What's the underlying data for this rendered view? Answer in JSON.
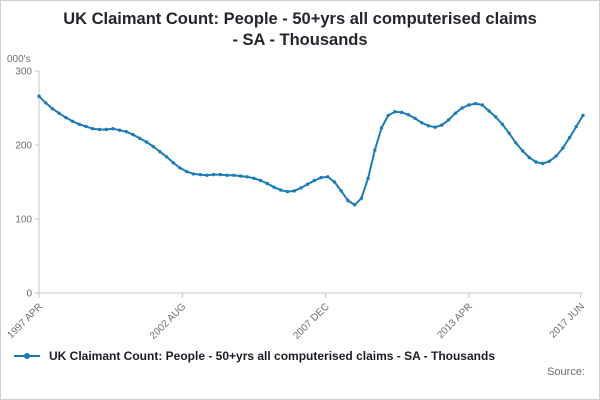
{
  "title": {
    "lines": [
      "UK Claimant Count: People - 50+yrs all computerised claims",
      "- SA - Thousands"
    ]
  },
  "colors": {
    "line": "#1d7cb8",
    "axis": "#c4c4c4",
    "tick_label": "#6e6e6e",
    "title_text": "#24262e"
  },
  "legend": {
    "label": "UK Claimant Count: People - 50+yrs all computerised claims - SA - Thousands"
  },
  "source_label": "Source:",
  "chart_data": {
    "type": "line",
    "title": "UK Claimant Count: People - 50+yrs all computerised claims - SA - Thousands",
    "xlabel": "",
    "ylabel": "000's",
    "ylim": [
      0,
      300
    ],
    "yticks": [
      0,
      100,
      200,
      300
    ],
    "grid": false,
    "legend_position": "bottom-left",
    "marker": "dot",
    "line_color": "#1d7cb8",
    "x_unit": "decimal_year_quarterly",
    "xticks": [
      {
        "x": 1997.25,
        "label": "1997 APR"
      },
      {
        "x": 2002.583,
        "label": "2002 AUG"
      },
      {
        "x": 2007.917,
        "label": "2007 DEC"
      },
      {
        "x": 2013.25,
        "label": "2013 APR"
      },
      {
        "x": 2017.417,
        "label": "2017 JUN"
      }
    ],
    "x": [
      1997.25,
      1997.5,
      1997.75,
      1998,
      1998.25,
      1998.5,
      1998.75,
      1999,
      1999.25,
      1999.5,
      1999.75,
      2000,
      2000.25,
      2000.5,
      2000.75,
      2001,
      2001.25,
      2001.5,
      2001.75,
      2002,
      2002.25,
      2002.5,
      2002.75,
      2003,
      2003.25,
      2003.5,
      2003.75,
      2004,
      2004.25,
      2004.5,
      2004.75,
      2005,
      2005.25,
      2005.5,
      2005.75,
      2006,
      2006.25,
      2006.5,
      2006.75,
      2007,
      2007.25,
      2007.5,
      2007.75,
      2008,
      2008.25,
      2008.5,
      2008.75,
      2009,
      2009.25,
      2009.5,
      2009.75,
      2010,
      2010.25,
      2010.5,
      2010.75,
      2011,
      2011.25,
      2011.5,
      2011.75,
      2012,
      2012.25,
      2012.5,
      2012.75,
      2013,
      2013.25,
      2013.5,
      2013.75,
      2014,
      2014.25,
      2014.5,
      2014.75,
      2015,
      2015.25,
      2015.5,
      2015.75,
      2016,
      2016.25,
      2016.5,
      2016.75,
      2017,
      2017.25,
      2017.5
    ],
    "values": [
      266,
      257,
      249,
      243,
      237,
      232,
      228,
      225,
      222,
      221,
      221,
      222,
      220,
      218,
      214,
      209,
      204,
      198,
      191,
      184,
      176,
      169,
      164,
      161,
      160,
      159,
      160,
      160,
      159,
      159,
      158,
      157,
      155,
      152,
      148,
      143,
      139,
      137,
      138,
      142,
      147,
      152,
      156,
      157,
      150,
      138,
      125,
      119,
      128,
      155,
      193,
      223,
      240,
      245,
      244,
      241,
      236,
      230,
      226,
      224,
      227,
      234,
      243,
      250,
      254,
      256,
      254,
      246,
      238,
      228,
      216,
      203,
      192,
      183,
      177,
      175,
      178,
      185,
      196,
      210,
      225,
      240
    ]
  }
}
